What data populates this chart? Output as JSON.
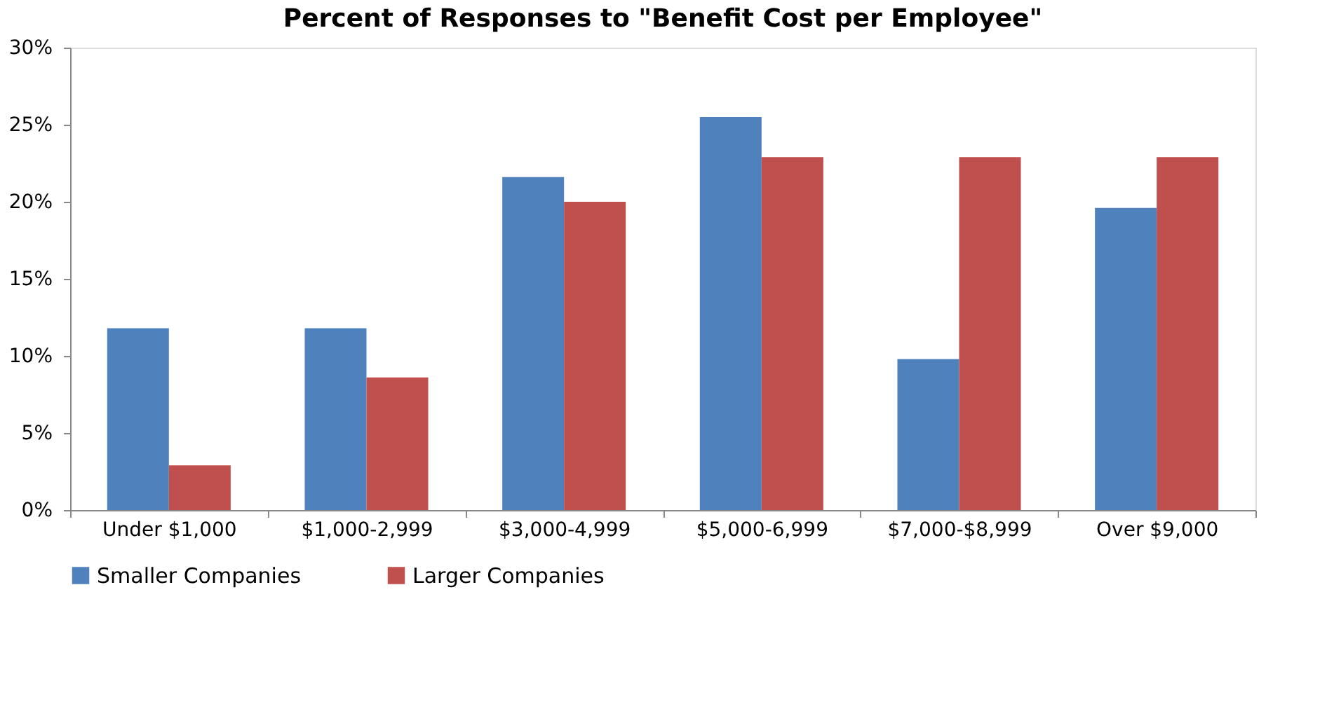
{
  "chart_data": {
    "type": "bar",
    "title": "Percent of Responses to \"Benefit Cost  per Employee\"",
    "categories": [
      "Under $1,000",
      "$1,000-2,999",
      "$3,000-4,999",
      "$5,000-6,999",
      "$7,000-$8,999",
      "Over $9,000"
    ],
    "series": [
      {
        "name": "Smaller Companies",
        "color": "#4f81bd",
        "values": [
          11.8,
          11.8,
          21.6,
          25.5,
          9.8,
          19.6
        ]
      },
      {
        "name": "Larger Companies",
        "color": "#c0504d",
        "values": [
          2.9,
          8.6,
          20.0,
          22.9,
          22.9,
          22.9
        ]
      }
    ],
    "ylim": [
      0,
      30
    ],
    "yticks": [
      {
        "value": 0,
        "label": "0%"
      },
      {
        "value": 5,
        "label": "5%"
      },
      {
        "value": 10,
        "label": "10%"
      },
      {
        "value": 15,
        "label": "15%"
      },
      {
        "value": 20,
        "label": "20%"
      },
      {
        "value": 25,
        "label": "25%"
      },
      {
        "value": 30,
        "label": "30%"
      }
    ],
    "grid": false,
    "legend": "bottom"
  }
}
